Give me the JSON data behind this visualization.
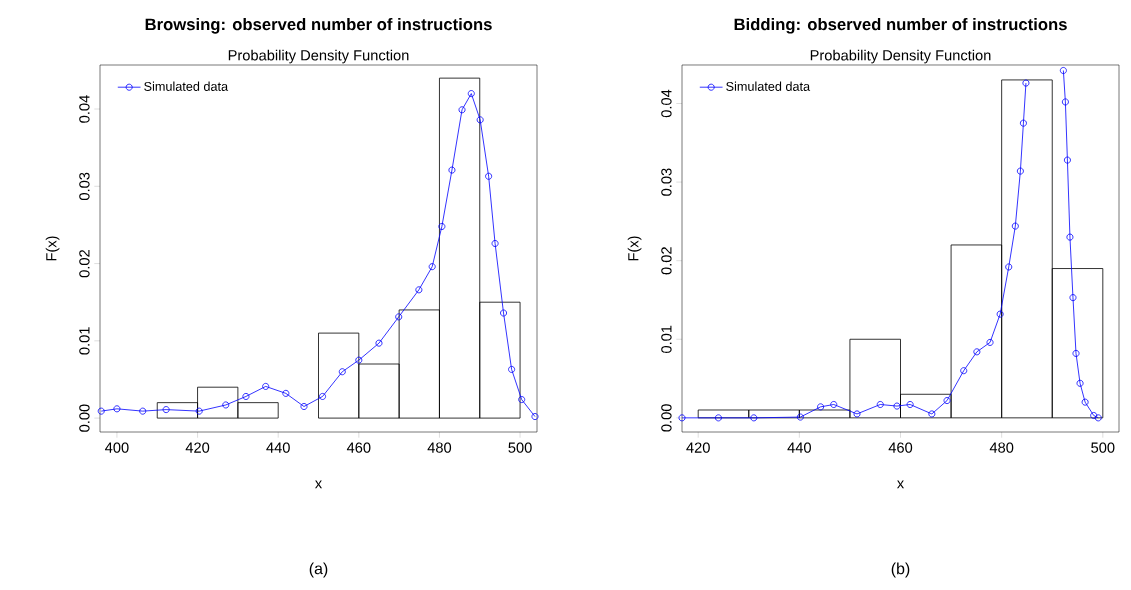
{
  "chart_data": [
    {
      "type": "histogram",
      "title": "Browsing: observed number of instructions",
      "subtitle": "Probability Density Function",
      "xlabel": "x",
      "ylabel": "F(x)",
      "annotations": [
        "(a)"
      ],
      "bins": [
        400,
        410,
        420,
        430,
        440,
        450,
        460,
        470,
        480,
        490,
        500
      ],
      "values": [
        0,
        0.002,
        0.004,
        0.002,
        0,
        0.011,
        0.007,
        0.014,
        0.044,
        0.015
      ],
      "series": [
        {
          "name": "Simulated data",
          "type": "line",
          "color": "#0000ff",
          "marker": "circle",
          "x": [
            396.1,
            400,
            406.4,
            412.2,
            420.4,
            427,
            432,
            436.9,
            441.9,
            446.4,
            451,
            455.9,
            460,
            465,
            469.9,
            474.9,
            478.2,
            480.6,
            483.1,
            485.6,
            487.9,
            490.1,
            492.2,
            493.8,
            495.9,
            497.9,
            500.4,
            503.7
          ],
          "values": [
            0.0009,
            0.0012,
            0.0009,
            0.0011,
            0.0009,
            0.0017,
            0.0028,
            0.0041,
            0.0032,
            0.0015,
            0.0028,
            0.006,
            0.0075,
            0.0097,
            0.0131,
            0.0166,
            0.0196,
            0.0248,
            0.0321,
            0.0399,
            0.042,
            0.0386,
            0.0313,
            0.0226,
            0.0136,
            0.0063,
            0.0024,
            0.0002
          ]
        }
      ],
      "xlim": [
        395.8,
        504.2
      ],
      "ylim": [
        -0.0018,
        0.0457
      ],
      "xticks": [
        400,
        420,
        440,
        460,
        480,
        500
      ],
      "yticks": [
        {
          "value": 0,
          "label": "0.00"
        },
        {
          "value": 0.01,
          "label": "0.01"
        },
        {
          "value": 0.02,
          "label": "0.02"
        },
        {
          "value": 0.03,
          "label": "0.03"
        },
        {
          "value": 0.04,
          "label": "0.04"
        }
      ],
      "legend": "top left"
    },
    {
      "type": "histogram",
      "title": "Bidding: observed number of instructions",
      "subtitle": "Probability Density Function",
      "xlabel": "x",
      "ylabel": "F(x)",
      "annotations": [
        "(b)"
      ],
      "bins": [
        420,
        430,
        440,
        450,
        460,
        470,
        480,
        490,
        500
      ],
      "values": [
        0.001,
        0.001,
        0.001,
        0.01,
        0.003,
        0.022,
        0.043,
        0.019
      ],
      "series": [
        {
          "name": "Simulated data",
          "type": "line",
          "color": "#0000ff",
          "marker": "circle",
          "x": [
            416.8,
            424,
            431,
            440.2,
            444.2,
            446.8,
            451.4,
            456,
            459.3,
            461.9,
            466.2,
            469.2,
            472.5,
            475.1,
            477.7,
            479.7,
            481.4,
            482.7,
            483.7,
            484.3,
            484.8,
            488.5,
            492.2,
            492.6,
            493,
            493.5,
            494.1,
            494.7,
            495.5,
            496.5,
            498.2,
            499.1
          ],
          "values": [
            0,
            0,
            0,
            0.0001,
            0.0014,
            0.0017,
            0.0005,
            0.0017,
            0.0015,
            0.0017,
            0.0005,
            0.0022,
            0.006,
            0.0084,
            0.0096,
            0.0132,
            0.0192,
            0.0244,
            0.0314,
            0.0375,
            0.0426,
            null,
            0.0442,
            0.0402,
            0.0328,
            0.023,
            0.0153,
            0.0082,
            0.0044,
            0.002,
            0.0003,
            0
          ]
        }
      ],
      "xlim": [
        416.8,
        503.2
      ],
      "ylim": [
        -0.0018,
        0.0449
      ],
      "xticks": [
        420,
        440,
        460,
        480,
        500
      ],
      "yticks": [
        {
          "value": 0,
          "label": "0.00"
        },
        {
          "value": 0.01,
          "label": "0.01"
        },
        {
          "value": 0.02,
          "label": "0.02"
        },
        {
          "value": 0.03,
          "label": "0.03"
        },
        {
          "value": 0.04,
          "label": "0.04"
        }
      ],
      "legend": "top left"
    }
  ]
}
